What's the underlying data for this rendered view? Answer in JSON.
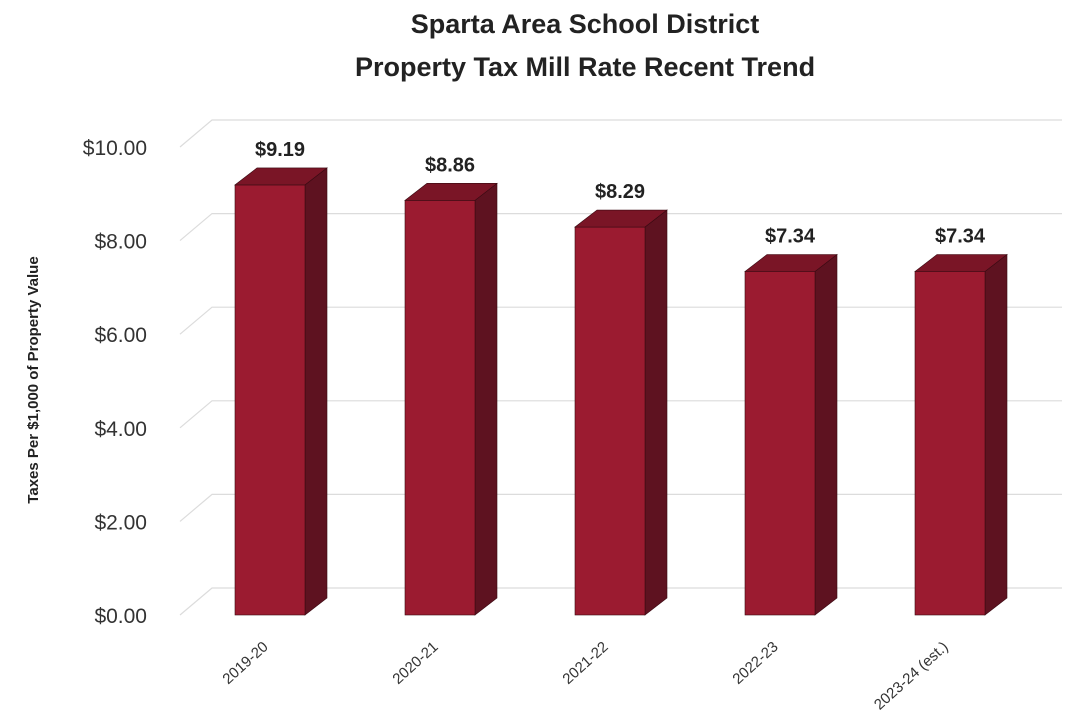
{
  "chart_data": {
    "type": "bar",
    "title": [
      "Sparta Area School District",
      "Property Tax Mill Rate Recent Trend"
    ],
    "ylabel": "Taxes Per $1,000  of Property Value",
    "xlabel": "",
    "categories": [
      "2019-20",
      "2020-21",
      "2021-22",
      "2022-23",
      "2023-24 (est.)"
    ],
    "values": [
      9.19,
      8.86,
      8.29,
      7.34,
      7.34
    ],
    "data_labels": [
      "$9.19",
      "$8.86",
      "$8.29",
      "$7.34",
      "$7.34"
    ],
    "ylim": [
      0,
      10
    ],
    "yticks": [
      0,
      2,
      4,
      6,
      8,
      10
    ],
    "ytick_labels": [
      "$0.00",
      "$2.00",
      "$4.00",
      "$6.00",
      "$8.00",
      "$10.00"
    ],
    "grid": true,
    "style": "3d-column",
    "colors": {
      "front": "#9b1b30",
      "top": "#7a1526",
      "side": "#5e1220",
      "outline": "#3a0a12"
    }
  }
}
